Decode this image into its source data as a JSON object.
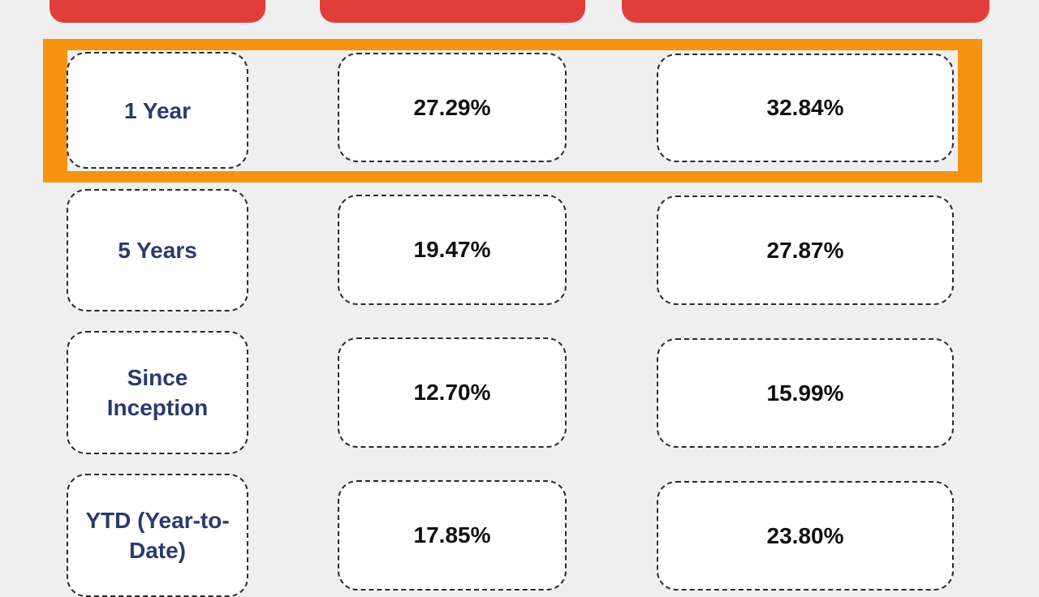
{
  "colors": {
    "background": "#efefef",
    "header_red": "#e23e39",
    "highlight_orange": "#f6930f",
    "label_navy": "#2b3a6e",
    "value_text": "#111111"
  },
  "header": {
    "columns": [
      {
        "label": ""
      },
      {
        "label": ""
      },
      {
        "label": ""
      }
    ]
  },
  "table": {
    "highlighted_row": 0,
    "rows": [
      {
        "label": "1 Year",
        "col1": "27.29%",
        "col2": "32.84%"
      },
      {
        "label": "5 Years",
        "col1": "19.47%",
        "col2": "27.87%"
      },
      {
        "label": "Since Inception",
        "col1": "12.70%",
        "col2": "15.99%"
      },
      {
        "label": "YTD (Year-to-Date)",
        "col1": "17.85%",
        "col2": "23.80%"
      }
    ]
  }
}
